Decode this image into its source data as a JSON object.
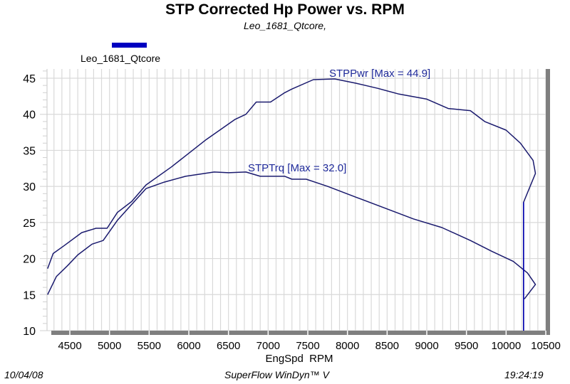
{
  "chart_data": {
    "type": "line",
    "title": "STP Corrected Hp Power vs. RPM",
    "subtitle": "Leo_1681_Qtcore,",
    "xlabel": "EngSpd  RPM",
    "ylabel": "",
    "xlim": [
      4212,
      10520
    ],
    "ylim": [
      10,
      46.5
    ],
    "x_ticks": [
      4500,
      5000,
      5500,
      6000,
      6500,
      7000,
      7500,
      8000,
      8500,
      9000,
      9500,
      10000,
      10500
    ],
    "y_ticks": [
      10,
      15,
      20,
      25,
      30,
      35,
      40,
      45
    ],
    "grid": true,
    "legend": [
      {
        "name": "Leo_1681_Qtcore",
        "color": "#0000c0",
        "position": "top-left"
      }
    ],
    "series": [
      {
        "name": "STPPwr",
        "annotation": "STPPwr [Max = 44.9]",
        "color": "#1a1a6e",
        "x": [
          4220,
          4290,
          4430,
          4650,
          4830,
          4970,
          5100,
          5280,
          5460,
          5780,
          6220,
          6585,
          6720,
          6850,
          7030,
          7210,
          7300,
          7570,
          7840,
          8110,
          8380,
          8650,
          9000,
          9270,
          9550,
          9730,
          10000,
          10180,
          10340,
          10370,
          10220,
          10220
        ],
        "y": [
          18.6,
          20.7,
          21.8,
          23.6,
          24.2,
          24.2,
          26.4,
          27.9,
          30.2,
          32.7,
          36.5,
          39.3,
          40.0,
          41.7,
          41.7,
          43.0,
          43.5,
          44.8,
          44.9,
          44.3,
          43.6,
          42.8,
          42.1,
          40.8,
          40.5,
          39.0,
          37.8,
          36.0,
          33.6,
          31.8,
          27.8,
          10.0
        ]
      },
      {
        "name": "STPTrq",
        "annotation": "STPTrq [Max = 32.0]",
        "color": "#1a1a6e",
        "x": [
          4220,
          4330,
          4470,
          4600,
          4780,
          4920,
          5100,
          5280,
          5460,
          5690,
          5960,
          6320,
          6500,
          6720,
          6900,
          7210,
          7300,
          7480,
          7750,
          8110,
          8470,
          8830,
          9190,
          9550,
          9820,
          10090,
          10270,
          10370,
          10230
        ],
        "y": [
          15.0,
          17.5,
          19.0,
          20.5,
          22.0,
          22.5,
          25.3,
          27.5,
          29.7,
          30.6,
          31.4,
          32.0,
          31.9,
          32.0,
          31.4,
          31.4,
          31.0,
          31.0,
          30.0,
          28.5,
          27.0,
          25.5,
          24.3,
          22.5,
          21.0,
          19.6,
          18.0,
          16.4,
          14.4
        ]
      }
    ]
  },
  "footer": {
    "date": "10/04/08",
    "software": "SuperFlow WinDyn™ V",
    "time": "19:24:19"
  }
}
